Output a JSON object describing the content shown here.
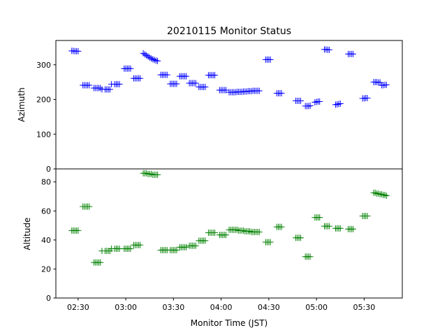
{
  "chart_data": [
    {
      "type": "scatter",
      "title": "20210115 Monitor Status",
      "xlabel": "",
      "ylabel": "Azimuth",
      "xlim": [
        "02:16",
        "05:54"
      ],
      "ylim": [
        0,
        370
      ],
      "yticks": [
        0,
        100,
        200,
        300
      ],
      "marker": "+",
      "color": "#0000ff",
      "series": [
        {
          "x": [
            "02:26",
            "02:27",
            "02:28",
            "02:29",
            "02:30",
            "02:33",
            "02:34",
            "02:35",
            "02:36",
            "02:37",
            "02:40",
            "02:41",
            "02:42",
            "02:43",
            "02:44",
            "02:45",
            "02:47",
            "02:48",
            "02:49",
            "02:50",
            "02:51",
            "02:53",
            "02:54",
            "02:55",
            "02:56",
            "02:59",
            "03:00",
            "03:01",
            "03:02",
            "03:03",
            "03:05",
            "03:06",
            "03:07",
            "03:08",
            "03:09",
            "03:11",
            "03:12",
            "03:13",
            "03:14",
            "03:15",
            "03:16",
            "03:17",
            "03:18",
            "03:19",
            "03:20",
            "03:22",
            "03:23",
            "03:24",
            "03:25",
            "03:26",
            "03:28",
            "03:29",
            "03:30",
            "03:31",
            "03:32",
            "03:34",
            "03:35",
            "03:36",
            "03:37",
            "03:38",
            "03:40",
            "03:41",
            "03:42",
            "03:43",
            "03:44",
            "03:46",
            "03:47",
            "03:48",
            "03:49",
            "03:50",
            "03:52",
            "03:53",
            "03:54",
            "03:55",
            "03:56",
            "03:59",
            "04:00",
            "04:01",
            "04:02",
            "04:03",
            "04:05",
            "04:06",
            "04:07",
            "04:08",
            "04:09",
            "04:10",
            "04:11",
            "04:12",
            "04:13",
            "04:14",
            "04:15",
            "04:16",
            "04:17",
            "04:18",
            "04:19",
            "04:20",
            "04:21",
            "04:22",
            "04:23",
            "04:24",
            "04:28",
            "04:29",
            "04:30",
            "04:31",
            "04:35",
            "04:36",
            "04:37",
            "04:38",
            "04:47",
            "04:48",
            "04:49",
            "04:50",
            "04:53",
            "04:54",
            "04:55",
            "04:56",
            "04:59",
            "05:00",
            "05:01",
            "05:02",
            "05:05",
            "05:06",
            "05:07",
            "05:08",
            "05:12",
            "05:13",
            "05:14",
            "05:15",
            "05:20",
            "05:21",
            "05:22",
            "05:23",
            "05:29",
            "05:30",
            "05:31",
            "05:32",
            "05:36",
            "05:37",
            "05:38",
            "05:39",
            "05:40",
            "05:41",
            "05:42",
            "05:43",
            "05:44"
          ],
          "y": [
            340,
            340,
            339,
            339,
            339,
            241,
            241,
            241,
            241,
            241,
            233,
            233,
            233,
            233,
            233,
            229,
            229,
            229,
            229,
            229,
            244,
            244,
            244,
            244,
            244,
            289,
            289,
            289,
            289,
            289,
            261,
            261,
            261,
            261,
            261,
            333,
            330,
            327,
            324,
            321,
            318,
            316,
            314,
            312,
            311,
            271,
            271,
            271,
            271,
            271,
            245,
            245,
            245,
            245,
            245,
            267,
            267,
            267,
            267,
            267,
            247,
            247,
            247,
            247,
            247,
            236,
            236,
            236,
            236,
            236,
            270,
            270,
            270,
            270,
            270,
            227,
            227,
            227,
            227,
            227,
            221,
            221,
            221,
            221,
            221,
            222,
            222,
            222,
            222,
            223,
            223,
            223,
            224,
            224,
            224,
            225,
            225,
            225,
            225,
            225,
            315,
            315,
            315,
            315,
            218,
            218,
            218,
            218,
            196,
            196,
            196,
            196,
            181,
            181,
            181,
            182,
            192,
            193,
            194,
            194,
            344,
            344,
            343,
            343,
            185,
            186,
            187,
            188,
            331,
            331,
            331,
            331,
            203,
            203,
            204,
            204,
            250,
            250,
            250,
            249,
            249,
            241,
            241,
            242,
            242
          ]
        }
      ]
    },
    {
      "type": "scatter",
      "title": "",
      "xlabel": "Monitor Time (JST)",
      "ylabel": "Altitude",
      "xlim": [
        "02:16",
        "05:54"
      ],
      "ylim": [
        0,
        89
      ],
      "yticks": [
        0,
        20,
        40,
        60,
        80
      ],
      "xticks": [
        "02:30",
        "03:00",
        "03:30",
        "04:00",
        "04:30",
        "05:00",
        "05:30"
      ],
      "marker": "+",
      "color": "#008000",
      "series": [
        {
          "x": [
            "02:26",
            "02:27",
            "02:28",
            "02:29",
            "02:30",
            "02:33",
            "02:34",
            "02:35",
            "02:36",
            "02:37",
            "02:40",
            "02:41",
            "02:42",
            "02:43",
            "02:44",
            "02:45",
            "02:47",
            "02:48",
            "02:49",
            "02:50",
            "02:51",
            "02:53",
            "02:54",
            "02:55",
            "02:56",
            "02:59",
            "03:00",
            "03:01",
            "03:02",
            "03:03",
            "03:05",
            "03:06",
            "03:07",
            "03:08",
            "03:09",
            "03:11",
            "03:12",
            "03:13",
            "03:14",
            "03:15",
            "03:16",
            "03:17",
            "03:18",
            "03:19",
            "03:20",
            "03:22",
            "03:23",
            "03:24",
            "03:25",
            "03:26",
            "03:28",
            "03:29",
            "03:30",
            "03:31",
            "03:32",
            "03:34",
            "03:35",
            "03:36",
            "03:37",
            "03:38",
            "03:40",
            "03:41",
            "03:42",
            "03:43",
            "03:44",
            "03:46",
            "03:47",
            "03:48",
            "03:49",
            "03:50",
            "03:52",
            "03:53",
            "03:54",
            "03:55",
            "03:56",
            "03:59",
            "04:00",
            "04:01",
            "04:02",
            "04:03",
            "04:05",
            "04:06",
            "04:07",
            "04:08",
            "04:09",
            "04:10",
            "04:11",
            "04:12",
            "04:13",
            "04:14",
            "04:15",
            "04:16",
            "04:17",
            "04:18",
            "04:19",
            "04:20",
            "04:21",
            "04:22",
            "04:23",
            "04:24",
            "04:28",
            "04:29",
            "04:30",
            "04:31",
            "04:35",
            "04:36",
            "04:37",
            "04:38",
            "04:47",
            "04:48",
            "04:49",
            "04:50",
            "04:53",
            "04:54",
            "04:55",
            "04:56",
            "04:59",
            "05:00",
            "05:01",
            "05:02",
            "05:05",
            "05:06",
            "05:07",
            "05:08",
            "05:12",
            "05:13",
            "05:14",
            "05:15",
            "05:20",
            "05:21",
            "05:22",
            "05:23",
            "05:29",
            "05:30",
            "05:31",
            "05:32",
            "05:36",
            "05:37",
            "05:38",
            "05:39",
            "05:40",
            "05:41",
            "05:42",
            "05:43",
            "05:44"
          ],
          "y": [
            46.5,
            46.5,
            46.5,
            46.5,
            46.5,
            63,
            63,
            63,
            63,
            63,
            24.5,
            24.5,
            24.5,
            24.5,
            24.5,
            32.5,
            32.5,
            32.5,
            32.5,
            32.5,
            34,
            34,
            34,
            34,
            34,
            34,
            34,
            34,
            34,
            34,
            36.5,
            36.5,
            36.5,
            36.5,
            36.5,
            86,
            86,
            86,
            85.5,
            85.5,
            85.5,
            85,
            85,
            85,
            85,
            33,
            33,
            33,
            33,
            33,
            33,
            33,
            33,
            33,
            33,
            35,
            35,
            35,
            35,
            35,
            36,
            36,
            36,
            36,
            36,
            39.5,
            39.5,
            39.5,
            39.5,
            39.5,
            45,
            45,
            45,
            45,
            45,
            43.5,
            43.5,
            43.5,
            43.5,
            43.5,
            47,
            47,
            47,
            47,
            47,
            47,
            46.5,
            46.5,
            46.5,
            46.5,
            46,
            46,
            46,
            46,
            45.5,
            45.5,
            45.5,
            45.5,
            45.5,
            45.5,
            38.5,
            38.5,
            38.5,
            38.5,
            49,
            49,
            49,
            49,
            41.5,
            41.5,
            41.5,
            41.5,
            28.5,
            28.5,
            28.5,
            28.5,
            55.5,
            55.5,
            55.5,
            55.5,
            49.5,
            49.5,
            49.5,
            49.5,
            48,
            48,
            48,
            48,
            47.5,
            47.5,
            47.5,
            47.5,
            56.5,
            56.5,
            56.5,
            56.5,
            72.5,
            72.5,
            72,
            72,
            71.5,
            71.5,
            71,
            71,
            70.5
          ]
        }
      ]
    }
  ]
}
